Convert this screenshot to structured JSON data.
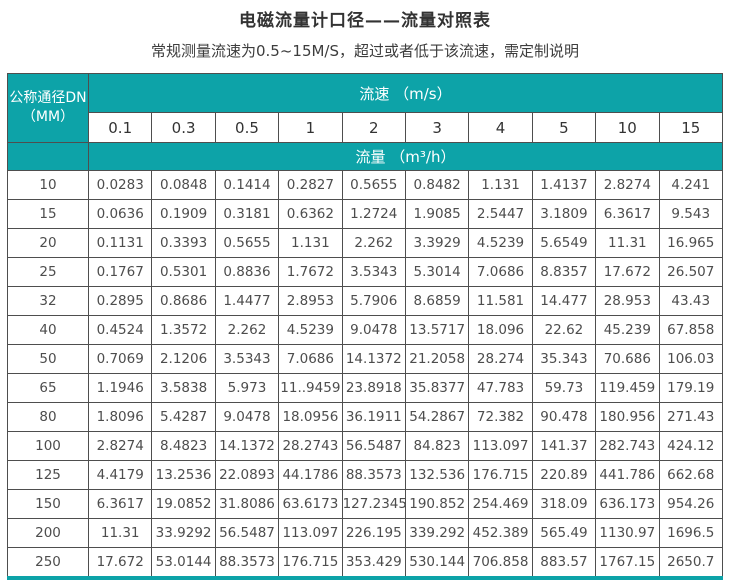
{
  "title": "电磁流量计口径——流量对照表",
  "subtitle": "常规测量流速为0.5~15M/S，超过或者低于该流速，需定制说明",
  "colors": {
    "header_teal": "#0da3a8",
    "cell_border": "#4e4e4e",
    "body_text": "#4d4d4d",
    "header_text": "#ffffff"
  },
  "table": {
    "dn_label_line1": "公称通径DN",
    "dn_label_line2": "（MM）",
    "speed_label": "流速 （m/s）",
    "flow_label": "流量 （m³/h）",
    "speeds": [
      "0.1",
      "0.3",
      "0.5",
      "1",
      "2",
      "3",
      "4",
      "5",
      "10",
      "15"
    ],
    "rows": [
      {
        "dn": "10",
        "values": [
          "0.0283",
          "0.0848",
          "0.1414",
          "0.2827",
          "0.5655",
          "0.8482",
          "1.131",
          "1.4137",
          "2.8274",
          "4.241"
        ]
      },
      {
        "dn": "15",
        "values": [
          "0.0636",
          "0.1909",
          "0.3181",
          "0.6362",
          "1.2724",
          "1.9085",
          "2.5447",
          "3.1809",
          "6.3617",
          "9.543"
        ]
      },
      {
        "dn": "20",
        "values": [
          "0.1131",
          "0.3393",
          "0.5655",
          "1.131",
          "2.262",
          "3.3929",
          "4.5239",
          "5.6549",
          "11.31",
          "16.965"
        ]
      },
      {
        "dn": "25",
        "values": [
          "0.1767",
          "0.5301",
          "0.8836",
          "1.7672",
          "3.5343",
          "5.3014",
          "7.0686",
          "8.8357",
          "17.672",
          "26.507"
        ]
      },
      {
        "dn": "32",
        "values": [
          "0.2895",
          "0.8686",
          "1.4477",
          "2.8953",
          "5.7906",
          "8.6859",
          "11.581",
          "14.477",
          "28.953",
          "43.43"
        ]
      },
      {
        "dn": "40",
        "values": [
          "0.4524",
          "1.3572",
          "2.262",
          "4.5239",
          "9.0478",
          "13.5717",
          "18.096",
          "22.62",
          "45.239",
          "67.858"
        ]
      },
      {
        "dn": "50",
        "values": [
          "0.7069",
          "2.1206",
          "3.5343",
          "7.0686",
          "14.1372",
          "21.2058",
          "28.274",
          "35.343",
          "70.686",
          "106.03"
        ]
      },
      {
        "dn": "65",
        "values": [
          "1.1946",
          "3.5838",
          "5.973",
          "11..9459",
          "23.8918",
          "35.8377",
          "47.783",
          "59.73",
          "119.459",
          "179.19"
        ]
      },
      {
        "dn": "80",
        "values": [
          "1.8096",
          "5.4287",
          "9.0478",
          "18.0956",
          "36.1911",
          "54.2867",
          "72.382",
          "90.478",
          "180.956",
          "271.43"
        ]
      },
      {
        "dn": "100",
        "values": [
          "2.8274",
          "8.4823",
          "14.1372",
          "28.2743",
          "56.5487",
          "84.823",
          "113.097",
          "141.37",
          "282.743",
          "424.12"
        ]
      },
      {
        "dn": "125",
        "values": [
          "4.4179",
          "13.2536",
          "22.0893",
          "44.1786",
          "88.3573",
          "132.536",
          "176.715",
          "220.89",
          "441.786",
          "662.68"
        ]
      },
      {
        "dn": "150",
        "values": [
          "6.3617",
          "19.0852",
          "31.8086",
          "63.6173",
          "127.2345",
          "190.852",
          "254.469",
          "318.09",
          "636.173",
          "954.26"
        ]
      },
      {
        "dn": "200",
        "values": [
          "11.31",
          "33.9292",
          "56.5487",
          "113.097",
          "226.195",
          "339.292",
          "452.389",
          "565.49",
          "1130.97",
          "1696.5"
        ]
      },
      {
        "dn": "250",
        "values": [
          "17.672",
          "53.0144",
          "88.3573",
          "176.715",
          "353.429",
          "530.144",
          "706.858",
          "883.57",
          "1767.15",
          "2650.7"
        ]
      }
    ]
  },
  "chart_data": {
    "type": "table",
    "title": "电磁流量计口径——流量对照表",
    "subtitle": "常规测量流速为0.5~15M/S，超过或者低于该流速，需定制说明",
    "row_header": "公称通径DN（MM）",
    "column_group_label": "流速（m/s）",
    "value_group_label": "流量（m³/h）",
    "speed_columns_m_per_s": [
      0.1,
      0.3,
      0.5,
      1,
      2,
      3,
      4,
      5,
      10,
      15
    ],
    "rows": [
      {
        "dn_mm": 10,
        "flows_m3_per_h": [
          0.0283,
          0.0848,
          0.1414,
          0.2827,
          0.5655,
          0.8482,
          1.131,
          1.4137,
          2.8274,
          4.241
        ]
      },
      {
        "dn_mm": 15,
        "flows_m3_per_h": [
          0.0636,
          0.1909,
          0.3181,
          0.6362,
          1.2724,
          1.9085,
          2.5447,
          3.1809,
          6.3617,
          9.543
        ]
      },
      {
        "dn_mm": 20,
        "flows_m3_per_h": [
          0.1131,
          0.3393,
          0.5655,
          1.131,
          2.262,
          3.3929,
          4.5239,
          5.6549,
          11.31,
          16.965
        ]
      },
      {
        "dn_mm": 25,
        "flows_m3_per_h": [
          0.1767,
          0.5301,
          0.8836,
          1.7672,
          3.5343,
          5.3014,
          7.0686,
          8.8357,
          17.672,
          26.507
        ]
      },
      {
        "dn_mm": 32,
        "flows_m3_per_h": [
          0.2895,
          0.8686,
          1.4477,
          2.8953,
          5.7906,
          8.6859,
          11.581,
          14.477,
          28.953,
          43.43
        ]
      },
      {
        "dn_mm": 40,
        "flows_m3_per_h": [
          0.4524,
          1.3572,
          2.262,
          4.5239,
          9.0478,
          13.5717,
          18.096,
          22.62,
          45.239,
          67.858
        ]
      },
      {
        "dn_mm": 50,
        "flows_m3_per_h": [
          0.7069,
          2.1206,
          3.5343,
          7.0686,
          14.1372,
          21.2058,
          28.274,
          35.343,
          70.686,
          106.03
        ]
      },
      {
        "dn_mm": 65,
        "flows_m3_per_h": [
          1.1946,
          3.5838,
          5.973,
          11.9459,
          23.8918,
          35.8377,
          47.783,
          59.73,
          119.459,
          179.19
        ]
      },
      {
        "dn_mm": 80,
        "flows_m3_per_h": [
          1.8096,
          5.4287,
          9.0478,
          18.0956,
          36.1911,
          54.2867,
          72.382,
          90.478,
          180.956,
          271.43
        ]
      },
      {
        "dn_mm": 100,
        "flows_m3_per_h": [
          2.8274,
          8.4823,
          14.1372,
          28.2743,
          56.5487,
          84.823,
          113.097,
          141.37,
          282.743,
          424.12
        ]
      },
      {
        "dn_mm": 125,
        "flows_m3_per_h": [
          4.4179,
          13.2536,
          22.0893,
          44.1786,
          88.3573,
          132.536,
          176.715,
          220.89,
          441.786,
          662.68
        ]
      },
      {
        "dn_mm": 150,
        "flows_m3_per_h": [
          6.3617,
          19.0852,
          31.8086,
          63.6173,
          127.2345,
          190.852,
          254.469,
          318.09,
          636.173,
          954.26
        ]
      },
      {
        "dn_mm": 200,
        "flows_m3_per_h": [
          11.31,
          33.9292,
          56.5487,
          113.097,
          226.195,
          339.292,
          452.389,
          565.49,
          1130.97,
          1696.5
        ]
      },
      {
        "dn_mm": 250,
        "flows_m3_per_h": [
          17.672,
          53.0144,
          88.3573,
          176.715,
          353.429,
          530.144,
          706.858,
          883.57,
          1767.15,
          2650.7
        ]
      }
    ]
  }
}
